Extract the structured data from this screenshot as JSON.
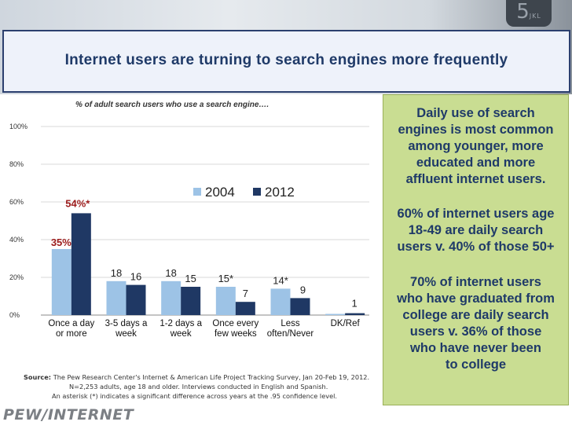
{
  "title": "Internet users are turning to search engines more frequently",
  "keypad_glyph": "5",
  "keypad_sub": "JKL",
  "chart_data": {
    "type": "bar",
    "subtitle": "% of adult search users who use a search engine….",
    "categories": [
      "Once a day or more",
      "3-5 days a week",
      "1-2 days a week",
      "Once every few weeks",
      "Less often/Never",
      "DK/Ref"
    ],
    "category_lines": [
      [
        "Once a day",
        "or more"
      ],
      [
        "3-5 days a",
        "week"
      ],
      [
        "1-2 days a",
        "week"
      ],
      [
        "Once every",
        "few weeks"
      ],
      [
        "Less",
        "often/Never"
      ],
      [
        "DK/Ref",
        ""
      ]
    ],
    "series": [
      {
        "name": "2004",
        "color": "#9dc3e6",
        "values": [
          35,
          18,
          18,
          15,
          14,
          0
        ],
        "labels": [
          "35%",
          "18",
          "18",
          "15*",
          "14*",
          ""
        ]
      },
      {
        "name": "2012",
        "color": "#1f3864",
        "values": [
          54,
          16,
          15,
          7,
          9,
          1
        ],
        "labels": [
          "54%*",
          "16",
          "15",
          "7",
          "9",
          "1"
        ]
      }
    ],
    "y_ticks": [
      "0%",
      "20%",
      "40%",
      "60%",
      "80%",
      "100%"
    ],
    "ylim": [
      0,
      100
    ],
    "highlight_color": "#9c1b1b",
    "grid": true,
    "legend": "top-center"
  },
  "source": {
    "label": "Source:",
    "line1": "The Pew Research Center's Internet & American Life Project Tracking Survey, Jan 20-Feb 19, 2012.",
    "line2": "N=2,253 adults, age 18 and older. Interviews conducted in English and Spanish.",
    "line3": "An asterisk (*) indicates a significant difference across years at the .95 confidence level."
  },
  "sidebar": {
    "p1": [
      "Daily use of search",
      "engines is most common",
      "among younger, more",
      "educated and more",
      "affluent internet users."
    ],
    "p2": [
      "60% of internet users age",
      "18-49 are daily search",
      "users v. 40% of those 50+"
    ],
    "p3": [
      "70% of internet users",
      "who have graduated from",
      "college are daily search",
      "users v. 36% of those",
      "who have never been",
      "to college"
    ]
  },
  "logo": {
    "left": "PEW",
    "sep": "/",
    "right": "INTERNET"
  }
}
